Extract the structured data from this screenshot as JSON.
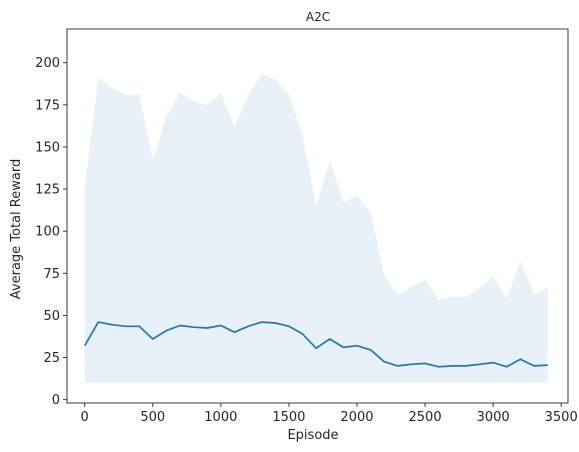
{
  "chart_data": {
    "type": "line",
    "title": "A2C",
    "xlabel": "Episode",
    "ylabel": "Average Total Reward",
    "xlim": [
      -130,
      3550
    ],
    "ylim": [
      -2,
      220
    ],
    "xticks": [
      0,
      500,
      1000,
      1500,
      2000,
      2500,
      3000,
      3500
    ],
    "yticks": [
      0,
      25,
      50,
      75,
      100,
      125,
      150,
      175,
      200
    ],
    "grid": false,
    "legend": "none",
    "colors": {
      "line": "#1f77b4",
      "band": "#1f77b4",
      "axis": "#262626"
    },
    "x": [
      0,
      100,
      200,
      300,
      400,
      500,
      600,
      700,
      800,
      900,
      1000,
      1100,
      1200,
      1300,
      1400,
      1500,
      1600,
      1700,
      1800,
      1900,
      2000,
      2100,
      2200,
      2300,
      2400,
      2500,
      2600,
      2700,
      2800,
      2900,
      3000,
      3100,
      3200,
      3300,
      3400
    ],
    "series": [
      {
        "values": [
          32,
          46,
          44.5,
          43.5,
          43.5,
          36,
          41,
          44,
          43,
          42.5,
          44,
          40,
          43.5,
          46,
          45.5,
          43.5,
          39,
          30.5,
          36,
          31,
          32,
          29.5,
          22.5,
          20,
          21,
          21.5,
          19.5,
          20,
          20,
          21,
          22,
          19.5,
          24,
          20,
          20.5
        ],
        "upper": [
          125,
          191,
          185,
          181,
          181,
          142,
          168,
          182,
          177,
          175,
          182,
          162,
          180,
          193,
          190,
          181,
          157,
          114,
          142,
          117,
          121,
          111,
          74,
          62,
          67,
          71,
          59,
          61,
          61,
          66,
          73,
          60,
          82,
          63,
          66
        ],
        "lower": [
          10,
          10,
          10,
          10,
          10,
          10,
          10,
          10,
          10,
          10,
          10,
          10,
          10,
          10,
          10,
          10,
          10,
          10,
          10,
          10,
          10,
          10,
          10,
          10,
          10,
          10,
          10,
          10,
          10,
          10,
          10,
          10,
          10,
          10,
          10
        ]
      }
    ]
  }
}
